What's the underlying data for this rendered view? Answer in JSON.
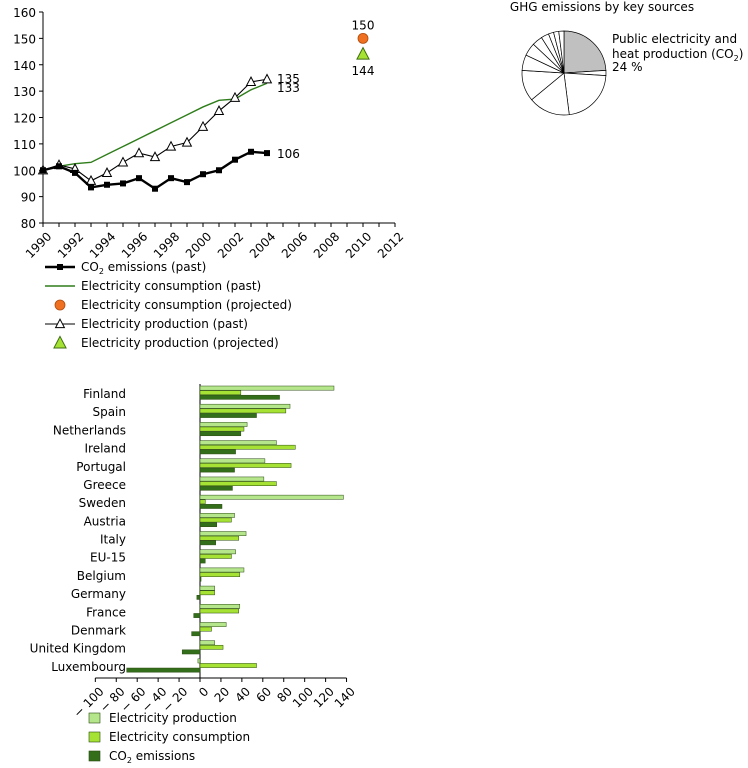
{
  "chart_data": [
    {
      "type": "line",
      "x": [
        1990,
        1991,
        1992,
        1993,
        1994,
        1995,
        1996,
        1997,
        1998,
        1999,
        2000,
        2001,
        2002,
        2003,
        2004
      ],
      "xlim": [
        1990,
        2012
      ],
      "xticks": [
        "1990",
        "1992",
        "1994",
        "1996",
        "1998",
        "2000",
        "2002",
        "2004",
        "2006",
        "2008",
        "2010",
        "2012"
      ],
      "ylim": [
        80,
        160
      ],
      "yticks": [
        "80",
        "90",
        "100",
        "110",
        "120",
        "130",
        "140",
        "150",
        "160"
      ],
      "grid": false,
      "legend_position": "bottom",
      "series": [
        {
          "name": "CO2 emissions (past)",
          "color": "#000000",
          "marker": "square",
          "values": [
            100,
            101.5,
            99,
            93.5,
            94.5,
            95,
            97,
            93,
            97,
            95.5,
            98.5,
            100,
            104,
            107,
            106.5
          ],
          "end_label": "106"
        },
        {
          "name": "Electricity consumption (past)",
          "color": "#2e7d1a",
          "marker": "none",
          "values": [
            100,
            101.5,
            102.5,
            103,
            106,
            109,
            112,
            115,
            118,
            121,
            124,
            126.5,
            127,
            130.5,
            133
          ],
          "end_label": "133"
        },
        {
          "name": "Electricity production (past)",
          "color": "#000000",
          "marker": "triangle-open",
          "values": [
            100,
            102,
            100.5,
            96,
            99,
            103,
            106.5,
            105,
            109,
            110.5,
            116.5,
            122.5,
            127.5,
            133.5,
            134.5
          ],
          "end_label": "135"
        }
      ],
      "projected": [
        {
          "name": "Electricity consumption (projected)",
          "x": 2010,
          "value": 150,
          "color": "#ee7020",
          "marker": "circle",
          "label": "150"
        },
        {
          "name": "Electricity production (projected)",
          "x": 2010,
          "value": 144,
          "color": "#a6e234",
          "marker": "triangle",
          "label": "144"
        }
      ],
      "legend": [
        {
          "label": "CO",
          "sub": "2",
          "after": " emissions (past)",
          "key": "co2"
        },
        {
          "label": "Electricity consumption (past)",
          "key": "cons_past"
        },
        {
          "label": "Electricity consumption (projected)",
          "key": "cons_proj"
        },
        {
          "label": "Electricity production (past)",
          "key": "prod_past"
        },
        {
          "label": "Electricity production (projected)",
          "key": "prod_proj"
        }
      ]
    },
    {
      "type": "pie",
      "title": "GHG emissions by key sources",
      "highlight_label_lines": [
        "Public electricity and",
        "heat production (CO",
        "2",
        ")",
        "24 %"
      ],
      "slices": [
        24,
        2,
        22,
        16,
        12,
        6,
        5,
        4,
        3,
        2,
        2,
        2
      ],
      "highlight_index": 0,
      "highlight_color": "#c0c0c0"
    },
    {
      "type": "bar",
      "orientation": "horizontal",
      "xlim": [
        -100,
        140
      ],
      "xticks": [
        "− 100",
        "− 80",
        "− 60",
        "− 40",
        "− 20",
        "0",
        "20",
        "40",
        "60",
        "80",
        "100",
        "120",
        "140"
      ],
      "categories": [
        "Finland",
        "Spain",
        "Netherlands",
        "Ireland",
        "Portugal",
        "Greece",
        "Sweden",
        "Austria",
        "Italy",
        "EU-15",
        "Belgium",
        "Germany",
        "France",
        "Denmark",
        "United Kingdom",
        "Luxembourg"
      ],
      "legend_position": "bottom",
      "series": [
        {
          "name": "Electricity production",
          "color": "#b5e68c",
          "values": [
            128,
            86,
            45,
            73,
            62,
            61,
            137,
            33,
            44,
            34,
            42,
            14,
            38,
            25,
            14,
            -2
          ]
        },
        {
          "name": "Electricity consumption",
          "color": "#a6e234",
          "values": [
            39,
            82,
            42,
            91,
            87,
            73,
            5,
            30,
            37,
            30,
            38,
            14,
            37,
            11,
            22,
            54
          ]
        },
        {
          "name": "CO2 emissions",
          "color": "#336e1a",
          "values": [
            76,
            54,
            39,
            34,
            33,
            31,
            21,
            16,
            15,
            5,
            1,
            -3,
            -6,
            -8,
            -17,
            -70
          ]
        }
      ],
      "legend": [
        {
          "label": "Electricity production",
          "key": "prod"
        },
        {
          "label": "Electricity consumption",
          "key": "cons"
        },
        {
          "label": "CO",
          "sub": "2",
          "after": " emissions",
          "key": "co2"
        }
      ]
    }
  ]
}
